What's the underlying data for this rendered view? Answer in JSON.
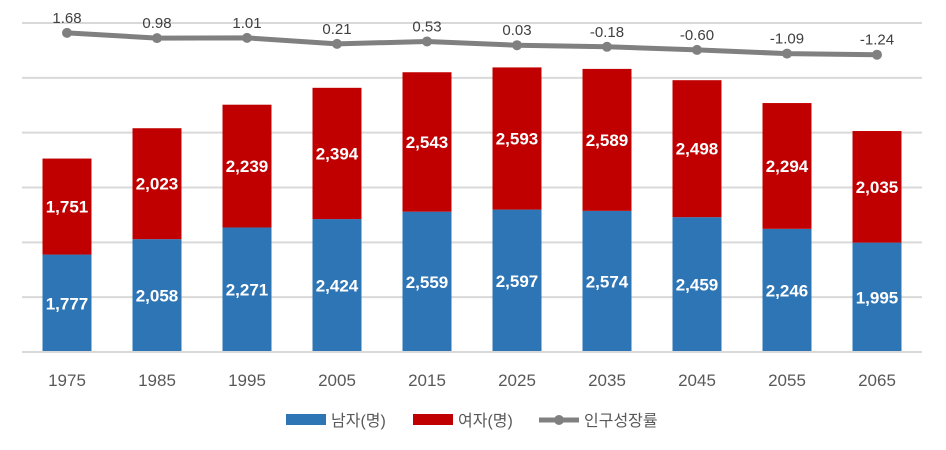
{
  "chart_data": {
    "type": "bar",
    "stacked": true,
    "categories": [
      "1975",
      "1985",
      "1995",
      "2005",
      "2015",
      "2025",
      "2035",
      "2045",
      "2055",
      "2065"
    ],
    "series": [
      {
        "name": "남자(명)",
        "type": "bar",
        "color": "#2E75B6",
        "values": [
          1777,
          2058,
          2271,
          2424,
          2559,
          2597,
          2574,
          2459,
          2246,
          1995
        ],
        "labels": [
          "1,777",
          "2,058",
          "2,271",
          "2,424",
          "2,559",
          "2,597",
          "2,574",
          "2,459",
          "2,246",
          "1,995"
        ]
      },
      {
        "name": "여자(명)",
        "type": "bar",
        "color": "#C00000",
        "values": [
          1751,
          2023,
          2239,
          2394,
          2543,
          2593,
          2589,
          2498,
          2294,
          2035
        ],
        "labels": [
          "1,751",
          "2,023",
          "2,239",
          "2,394",
          "2,543",
          "2,593",
          "2,589",
          "2,498",
          "2,294",
          "2,035"
        ]
      },
      {
        "name": "인구성장률",
        "type": "line",
        "axis": "secondary",
        "color": "#808080",
        "values": [
          1.68,
          0.98,
          1.01,
          0.21,
          0.53,
          0.03,
          -0.18,
          -0.6,
          -1.09,
          -1.24
        ],
        "labels": [
          "1.68",
          "0.98",
          "1.01",
          "0.21",
          "0.53",
          "0.03",
          "-0.18",
          "-0.60",
          "-1.09",
          "-1.24"
        ]
      }
    ],
    "ylim": [
      0,
      6000
    ],
    "y_grid_step": 1000,
    "y2lim": [
      -41,
      3
    ],
    "grid": true,
    "y_axis_labels_visible": false,
    "legend": "bottom"
  }
}
